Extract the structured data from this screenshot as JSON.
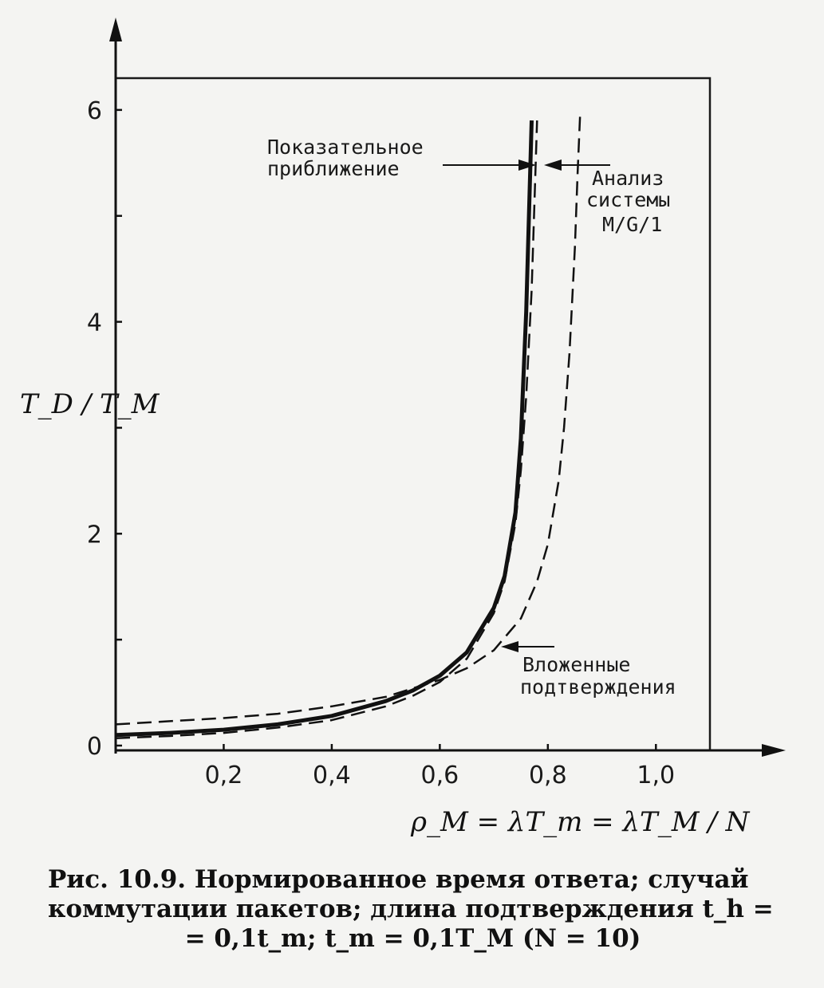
{
  "chart_data": {
    "type": "line",
    "xlabel": "ρ_M = λT_m = λT_M / N",
    "ylabel": "T_D / T_M",
    "xlim": [
      0,
      1.1
    ],
    "ylim": [
      0,
      6.3
    ],
    "x_ticks": [
      "0,2",
      "0,4",
      "0,6",
      "0,8",
      "1,0"
    ],
    "y_ticks": [
      "0",
      "2",
      "4",
      "6"
    ],
    "grid": false,
    "series": [
      {
        "name": "Показательное приближение",
        "style": "solid-thick",
        "x": [
          0,
          0.1,
          0.2,
          0.3,
          0.4,
          0.5,
          0.55,
          0.6,
          0.65,
          0.7,
          0.72,
          0.74,
          0.75,
          0.76,
          0.765,
          0.77
        ],
        "y": [
          0.1,
          0.12,
          0.15,
          0.2,
          0.28,
          0.42,
          0.52,
          0.66,
          0.88,
          1.3,
          1.6,
          2.2,
          2.9,
          4.1,
          5.0,
          5.9
        ]
      },
      {
        "name": "Анализ системы M/G/1",
        "style": "dashed",
        "x": [
          0,
          0.1,
          0.2,
          0.3,
          0.4,
          0.5,
          0.55,
          0.6,
          0.65,
          0.7,
          0.72,
          0.74,
          0.75,
          0.76,
          0.77,
          0.775,
          0.78
        ],
        "y": [
          0.07,
          0.09,
          0.12,
          0.17,
          0.24,
          0.37,
          0.47,
          0.6,
          0.82,
          1.25,
          1.55,
          2.1,
          2.6,
          3.3,
          4.3,
          5.1,
          5.9
        ]
      },
      {
        "name": "Вложенные подтверждения",
        "style": "dashed",
        "x": [
          0,
          0.1,
          0.2,
          0.3,
          0.4,
          0.5,
          0.6,
          0.65,
          0.7,
          0.75,
          0.78,
          0.8,
          0.82,
          0.83,
          0.84,
          0.85,
          0.855,
          0.86
        ],
        "y": [
          0.2,
          0.23,
          0.26,
          0.3,
          0.37,
          0.46,
          0.62,
          0.73,
          0.9,
          1.2,
          1.55,
          1.9,
          2.5,
          3.0,
          3.7,
          4.7,
          5.4,
          6.0
        ]
      }
    ],
    "annotations": {
      "exponential_line1": "Показательное",
      "exponential_line2": "приближение",
      "mg1_line1": "Анализ",
      "mg1_line2": "системы",
      "mg1_line3": "M/G/1",
      "embedded_line1": "Вложенные",
      "embedded_line2": "подтверждения"
    }
  },
  "caption": {
    "line1": "Рис.   10.9.  Нормированное  время  ответа;  случай",
    "line2": "коммутации   пакетов;   длина   подтверждения   t_h =",
    "line3": "= 0,1t_m;  t_m = 0,1T_M  (N = 10)"
  }
}
